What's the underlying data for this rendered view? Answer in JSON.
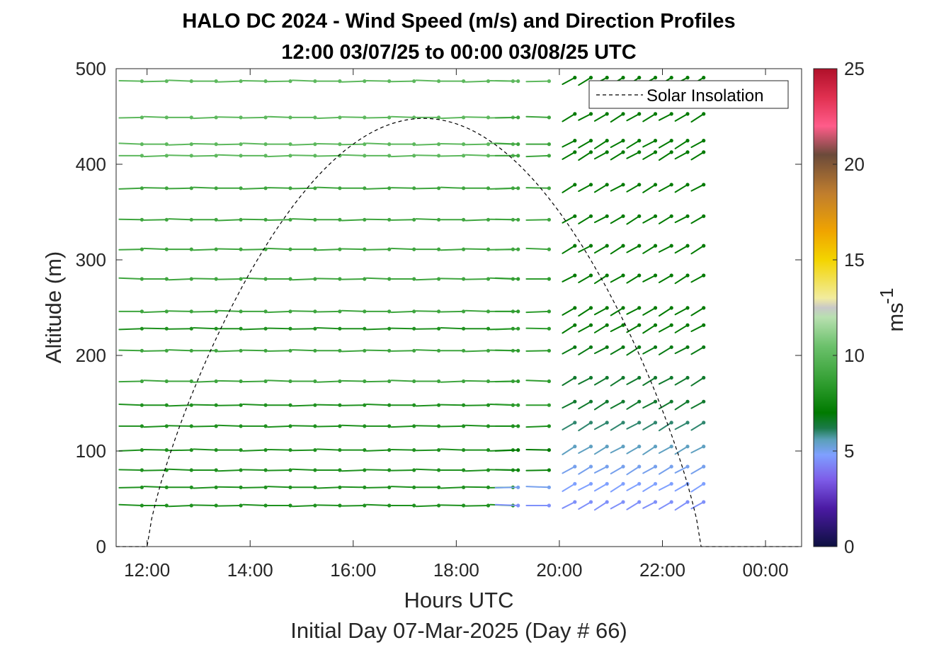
{
  "chart_data": {
    "type": "quiver",
    "title_line1": "HALO DC 2024 - Wind Speed (m/s) and Direction Profiles",
    "title_line2": "12:00 03/07/25 to 00:00 03/08/25  UTC",
    "xlabel": "Hours UTC",
    "xlabel2": "Initial Day 07-Mar-2025 (Day # 66)",
    "ylabel": "Altitude (m)",
    "xlim": [
      11.4,
      24.7
    ],
    "ylim": [
      0,
      500
    ],
    "xticks": [
      12,
      14,
      16,
      18,
      20,
      22,
      24
    ],
    "xtick_labels": [
      "12:00",
      "14:00",
      "16:00",
      "18:00",
      "20:00",
      "22:00",
      "00:00"
    ],
    "yticks": [
      0,
      100,
      200,
      300,
      400,
      500
    ],
    "ytick_labels": [
      "0",
      "100",
      "200",
      "300",
      "400",
      "500"
    ],
    "colorbar": {
      "label": "ms",
      "label_exponent": "-1",
      "range": [
        0,
        25
      ],
      "ticks": [
        0,
        5,
        10,
        15,
        20,
        25
      ],
      "tick_labels": [
        "0",
        "5",
        "10",
        "15",
        "20",
        "25"
      ],
      "stops": [
        {
          "v": 0,
          "c": "#0d1040"
        },
        {
          "v": 2,
          "c": "#4b1aa3"
        },
        {
          "v": 3.5,
          "c": "#7d5ce8"
        },
        {
          "v": 4.8,
          "c": "#7fa0ff"
        },
        {
          "v": 5.6,
          "c": "#5aa0b8"
        },
        {
          "v": 6.2,
          "c": "#1b7a4a"
        },
        {
          "v": 7,
          "c": "#007a00"
        },
        {
          "v": 8.5,
          "c": "#2e9c2e"
        },
        {
          "v": 10.5,
          "c": "#6cc16c"
        },
        {
          "v": 12,
          "c": "#b8e0b0"
        },
        {
          "v": 12.5,
          "c": "#c8c8c8"
        },
        {
          "v": 13,
          "c": "#f2ec9e"
        },
        {
          "v": 15,
          "c": "#f3d400"
        },
        {
          "v": 16.5,
          "c": "#f0a400"
        },
        {
          "v": 18.5,
          "c": "#bf7d2e"
        },
        {
          "v": 20.5,
          "c": "#6b4a3a"
        },
        {
          "v": 22,
          "c": "#ff5c8a"
        },
        {
          "v": 23.5,
          "c": "#e03050"
        },
        {
          "v": 25,
          "c": "#b0102a"
        }
      ]
    },
    "legend": {
      "entries": [
        "Solar Insolation"
      ],
      "placement": "top-right"
    },
    "solar_insolation": {
      "start_hour": 12.0,
      "end_hour": 22.75,
      "peak_hour": 17.37,
      "peak_altitude": 448
    },
    "series": {
      "altitudes": [
        43,
        62,
        80,
        101,
        126,
        148,
        173,
        205,
        228,
        246,
        280,
        311,
        342,
        375,
        409,
        421,
        449,
        487
      ],
      "segments": [
        {
          "hours": [
            11.9,
            19.1
          ],
          "speeds": [
            8,
            8,
            8,
            8,
            8,
            8,
            9,
            9,
            8,
            9,
            9,
            9,
            9,
            9,
            10,
            10,
            10,
            10
          ],
          "dir_deg": 0
        },
        {
          "hours": [
            19.2,
            19.8
          ],
          "speeds": [
            4.5,
            5,
            7.5,
            7,
            8,
            8.5,
            8.5,
            8.5,
            8.5,
            8.5,
            8.5,
            9,
            9,
            9,
            9,
            9,
            9,
            10
          ],
          "dir_deg": 0
        },
        {
          "hours": [
            20.3,
            22.8
          ],
          "speeds": [
            4.5,
            4.8,
            5,
            5.5,
            6,
            6.5,
            6.5,
            6.8,
            7,
            7,
            7,
            7,
            7,
            7,
            7,
            7,
            7,
            7
          ],
          "dir_deg": 30
        }
      ]
    }
  }
}
